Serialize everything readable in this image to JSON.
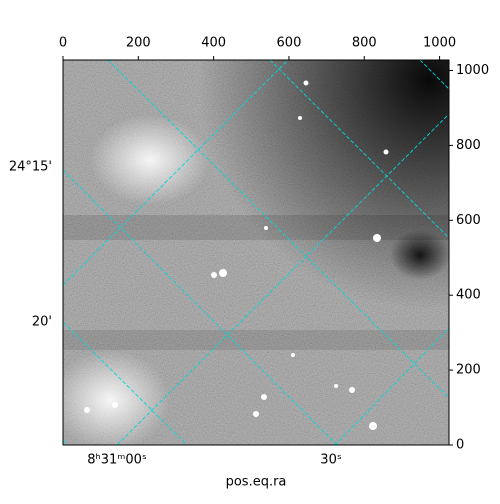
{
  "chart_data": {
    "type": "image",
    "xlabel": "pos.eq.ra",
    "xlim": [
      0,
      1025
    ],
    "ylim": [
      0,
      1028
    ],
    "xticks": [
      0,
      200,
      400,
      600,
      800,
      1000
    ],
    "yticks": [
      0,
      200,
      400,
      600,
      800,
      1000
    ],
    "ra_ticks": [
      "8ʰ31ᵐ00ˢ",
      "30ˢ"
    ],
    "dec_ticks": [
      "24°15'",
      "20'"
    ],
    "grid_color": "#00d8d8"
  }
}
